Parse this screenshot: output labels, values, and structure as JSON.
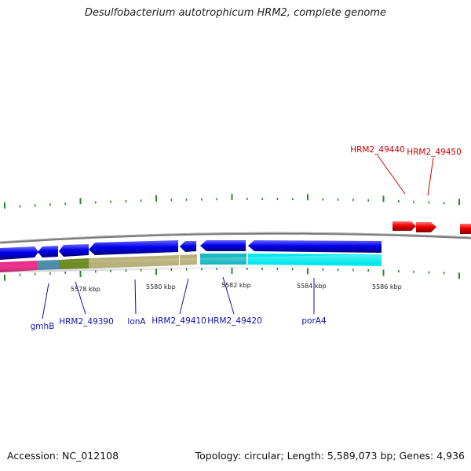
{
  "header": {
    "title": "Desulfobacterium autotrophicum HRM2, complete genome"
  },
  "footer": {
    "accession": "Accession: NC_012108",
    "stats": "Topology: circular; Length: 5,589,073 bp; Genes: 4,936"
  },
  "scale_labels": [
    "5578 kbp",
    "5580 kbp",
    "5582 kbp",
    "5584 kbp",
    "5586 kbp"
  ],
  "genes_bottom": [
    {
      "name": "gmhB"
    },
    {
      "name": "HRM2_49390"
    },
    {
      "name": "lonA"
    },
    {
      "name": "HRM2_49410"
    },
    {
      "name": "HRM2_49420"
    },
    {
      "name": "porA4"
    }
  ],
  "genes_top": [
    {
      "name": "HRM2_49440"
    },
    {
      "name": "HRM2_49450"
    }
  ],
  "colors": {
    "forward_gene": "#ee0000",
    "reverse_gene": "#0000ee",
    "backbone": "#808080",
    "tick": "#2a8a2a",
    "label_blue": "#1010b0",
    "label_red": "#cc0000",
    "band_pink": "#ee2a8a",
    "band_steel": "#4a8aaa",
    "band_olive": "#6a8a20",
    "band_khaki": "#b8b078",
    "band_teal": "#1ab8c0",
    "band_cyan": "#00e8ee"
  }
}
